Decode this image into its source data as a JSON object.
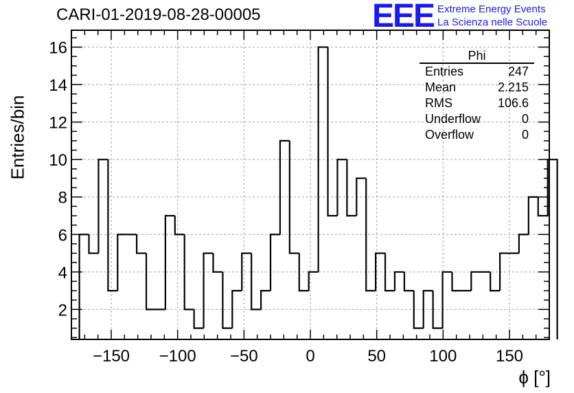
{
  "header": {
    "run_title": "CARI-01-2019-08-28-00005",
    "logo_text": "EEE",
    "logo_line1": "Extreme Energy Events",
    "logo_line2": "La Scienza nelle Scuole"
  },
  "stats_box": {
    "title": "Phi",
    "rows": [
      {
        "label": "Entries",
        "value": "247"
      },
      {
        "label": "Mean",
        "value": "2.215"
      },
      {
        "label": "RMS",
        "value": "106.6"
      },
      {
        "label": "Underflow",
        "value": "0"
      },
      {
        "label": "Overflow",
        "value": "0"
      }
    ]
  },
  "colors": {
    "line": "#000000",
    "grid": "#a0a0a0",
    "logo": "#1a1aee"
  },
  "chart_data": {
    "type": "bar",
    "style": "step-histogram",
    "title": "CARI-01-2019-08-28-00005",
    "xlabel": "ϕ [°]",
    "ylabel": "Entries/bin",
    "xlim": [
      -180,
      180
    ],
    "ylim": [
      0.4,
      16.9
    ],
    "grid": true,
    "bin_edges_start": -174,
    "bin_width": 7.2,
    "values": [
      6,
      5,
      10,
      3,
      6,
      6,
      5,
      2,
      2,
      7,
      6,
      2,
      1,
      5,
      4,
      1,
      3,
      5,
      2,
      3,
      6,
      11,
      5,
      3,
      4,
      16,
      7,
      10,
      7,
      9,
      3,
      5,
      3,
      4,
      3,
      1,
      3,
      1,
      4,
      3,
      3,
      4,
      4,
      3,
      5,
      5,
      6,
      8,
      7,
      10
    ],
    "x_ticks": [
      -150,
      -100,
      -50,
      0,
      50,
      100,
      150
    ],
    "x_tick_labels": [
      "−150",
      "−100",
      "−50",
      "0",
      "50",
      "100",
      "150"
    ],
    "y_ticks": [
      2,
      4,
      6,
      8,
      10,
      12,
      14,
      16
    ],
    "y_tick_labels": [
      "2",
      "4",
      "6",
      "8",
      "10",
      "12",
      "14",
      "16"
    ]
  }
}
